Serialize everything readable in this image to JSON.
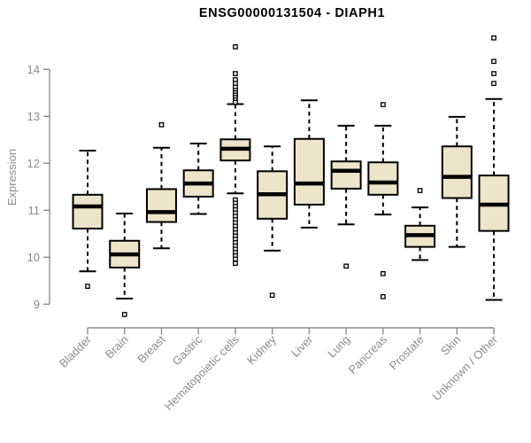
{
  "chart_data": {
    "type": "boxplot",
    "title": "ENSG00000131504 - DIAPH1",
    "ylabel": "Expression",
    "xlabel": "",
    "yticks": [
      9,
      10,
      11,
      12,
      13,
      14
    ],
    "ylim": [
      8.6,
      14.8
    ],
    "grid": false,
    "legend": null,
    "categories": [
      "Bladder",
      "Brain",
      "Breast",
      "Gastric",
      "Hematopoietic cells",
      "Kidney",
      "Liver",
      "Lung",
      "Pancreas",
      "Prostate",
      "Skin",
      "Unknown / Other"
    ],
    "boxes": [
      {
        "category": "Bladder",
        "whisker_low": 9.7,
        "q1": 10.61,
        "median": 11.08,
        "q3": 11.33,
        "whisker_high": 12.27,
        "outliers": [
          9.38
        ]
      },
      {
        "category": "Brain",
        "whisker_low": 9.12,
        "q1": 9.78,
        "median": 10.06,
        "q3": 10.35,
        "whisker_high": 10.93,
        "outliers": [
          8.78
        ]
      },
      {
        "category": "Breast",
        "whisker_low": 10.19,
        "q1": 10.75,
        "median": 10.96,
        "q3": 11.45,
        "whisker_high": 12.33,
        "outliers": [
          12.82
        ]
      },
      {
        "category": "Gastric",
        "whisker_low": 10.92,
        "q1": 11.29,
        "median": 11.57,
        "q3": 11.85,
        "whisker_high": 12.42,
        "outliers": []
      },
      {
        "category": "Hematopoietic cells",
        "whisker_low": 11.36,
        "q1": 12.06,
        "median": 12.31,
        "q3": 12.51,
        "whisker_high": 13.26,
        "outliers": [
          14.48,
          13.91,
          13.78,
          13.7,
          13.62,
          13.55,
          13.5,
          13.45,
          13.4,
          13.35,
          13.3,
          11.22,
          11.15,
          11.08,
          11.01,
          10.94,
          10.87,
          10.8,
          10.73,
          10.66,
          10.59,
          10.52,
          10.45,
          10.38,
          10.31,
          10.24,
          10.17,
          10.1,
          10.03,
          9.96,
          9.87
        ]
      },
      {
        "category": "Kidney",
        "whisker_low": 10.14,
        "q1": 10.82,
        "median": 11.34,
        "q3": 11.83,
        "whisker_high": 12.36,
        "outliers": [
          9.19
        ]
      },
      {
        "category": "Liver",
        "whisker_low": 10.63,
        "q1": 11.12,
        "median": 11.57,
        "q3": 12.52,
        "whisker_high": 13.34,
        "outliers": []
      },
      {
        "category": "Lung",
        "whisker_low": 10.7,
        "q1": 11.46,
        "median": 11.84,
        "q3": 12.04,
        "whisker_high": 12.8,
        "outliers": [
          9.81
        ]
      },
      {
        "category": "Pancreas",
        "whisker_low": 10.91,
        "q1": 11.33,
        "median": 11.59,
        "q3": 12.02,
        "whisker_high": 12.8,
        "outliers": [
          13.25,
          9.65,
          9.16
        ]
      },
      {
        "category": "Prostate",
        "whisker_low": 9.94,
        "q1": 10.22,
        "median": 10.47,
        "q3": 10.67,
        "whisker_high": 11.06,
        "outliers": [
          11.42
        ]
      },
      {
        "category": "Skin",
        "whisker_low": 10.22,
        "q1": 11.26,
        "median": 11.71,
        "q3": 12.36,
        "whisker_high": 12.99,
        "outliers": []
      },
      {
        "category": "Unknown / Other",
        "whisker_low": 9.09,
        "q1": 10.56,
        "median": 11.12,
        "q3": 11.74,
        "whisker_high": 13.37,
        "outliers": [
          14.67,
          14.17,
          13.91,
          13.7
        ]
      }
    ],
    "colors": {
      "box_fill": "#ECE5C9",
      "box_stroke": "#000000",
      "median": "#000000",
      "whisker": "#000000",
      "outlier_fill": "#ffffff",
      "axis": "#8c8c8c",
      "axis_text": "#8c8c8c",
      "title_text": "#000000",
      "background": "#ffffff"
    }
  }
}
